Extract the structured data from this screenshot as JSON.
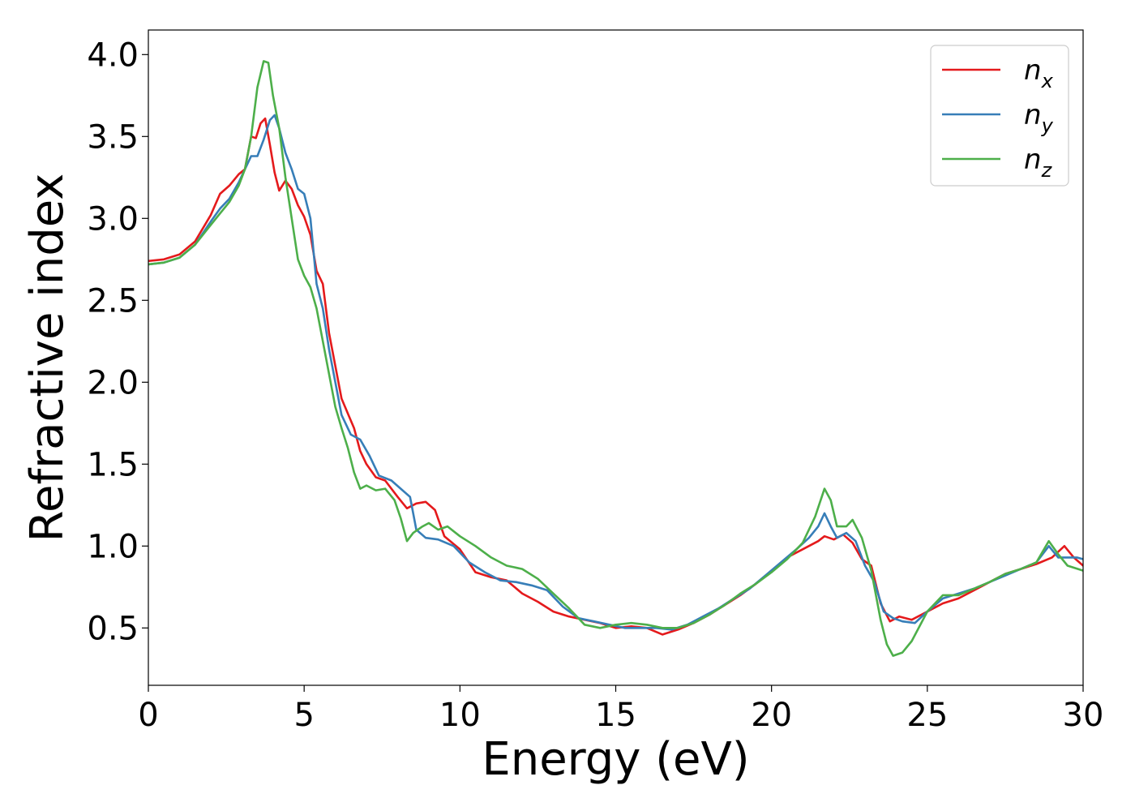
{
  "chart_data": {
    "type": "line",
    "title": "",
    "xlabel": "Energy (eV)",
    "ylabel": "Refractive index",
    "xlim": [
      0,
      30
    ],
    "ylim": [
      0.15,
      4.15
    ],
    "xticks": [
      "0",
      "5",
      "10",
      "15",
      "20",
      "25",
      "30"
    ],
    "yticks": [
      "0.5",
      "1.0",
      "1.5",
      "2.0",
      "2.5",
      "3.0",
      "3.5",
      "4.0"
    ],
    "grid": false,
    "legend_position": "top-right",
    "series": [
      {
        "name": "n",
        "subscript": "x",
        "color": "#e41a1c",
        "points": [
          [
            0,
            2.74
          ],
          [
            0.5,
            2.75
          ],
          [
            1,
            2.78
          ],
          [
            1.5,
            2.86
          ],
          [
            2,
            3.02
          ],
          [
            2.3,
            3.15
          ],
          [
            2.6,
            3.2
          ],
          [
            2.9,
            3.27
          ],
          [
            3.1,
            3.3
          ],
          [
            3.3,
            3.5
          ],
          [
            3.45,
            3.49
          ],
          [
            3.6,
            3.58
          ],
          [
            3.75,
            3.61
          ],
          [
            3.9,
            3.45
          ],
          [
            4.05,
            3.28
          ],
          [
            4.2,
            3.17
          ],
          [
            4.4,
            3.23
          ],
          [
            4.6,
            3.18
          ],
          [
            4.8,
            3.08
          ],
          [
            5.0,
            3.01
          ],
          [
            5.2,
            2.9
          ],
          [
            5.4,
            2.68
          ],
          [
            5.6,
            2.6
          ],
          [
            5.8,
            2.3
          ],
          [
            6.0,
            2.1
          ],
          [
            6.2,
            1.9
          ],
          [
            6.4,
            1.81
          ],
          [
            6.6,
            1.72
          ],
          [
            6.8,
            1.58
          ],
          [
            7.0,
            1.5
          ],
          [
            7.3,
            1.42
          ],
          [
            7.6,
            1.4
          ],
          [
            8.0,
            1.3
          ],
          [
            8.3,
            1.23
          ],
          [
            8.6,
            1.26
          ],
          [
            8.9,
            1.27
          ],
          [
            9.2,
            1.22
          ],
          [
            9.5,
            1.06
          ],
          [
            10.0,
            0.98
          ],
          [
            10.5,
            0.84
          ],
          [
            11.0,
            0.81
          ],
          [
            11.5,
            0.79
          ],
          [
            12.0,
            0.71
          ],
          [
            12.5,
            0.66
          ],
          [
            13.0,
            0.6
          ],
          [
            13.5,
            0.57
          ],
          [
            14.0,
            0.55
          ],
          [
            14.5,
            0.53
          ],
          [
            15.0,
            0.5
          ],
          [
            15.5,
            0.51
          ],
          [
            16.0,
            0.5
          ],
          [
            16.5,
            0.46
          ],
          [
            17.0,
            0.49
          ],
          [
            17.5,
            0.53
          ],
          [
            18.0,
            0.58
          ],
          [
            18.5,
            0.64
          ],
          [
            19.0,
            0.7
          ],
          [
            19.5,
            0.77
          ],
          [
            20.0,
            0.85
          ],
          [
            20.5,
            0.93
          ],
          [
            21.0,
            0.98
          ],
          [
            21.5,
            1.03
          ],
          [
            21.7,
            1.06
          ],
          [
            22.0,
            1.04
          ],
          [
            22.3,
            1.07
          ],
          [
            22.6,
            1.02
          ],
          [
            22.9,
            0.92
          ],
          [
            23.2,
            0.88
          ],
          [
            23.5,
            0.65
          ],
          [
            23.8,
            0.54
          ],
          [
            24.1,
            0.57
          ],
          [
            24.5,
            0.55
          ],
          [
            25.0,
            0.6
          ],
          [
            25.5,
            0.65
          ],
          [
            26.0,
            0.68
          ],
          [
            26.5,
            0.73
          ],
          [
            27.0,
            0.78
          ],
          [
            27.5,
            0.83
          ],
          [
            28.0,
            0.86
          ],
          [
            28.5,
            0.89
          ],
          [
            29.0,
            0.93
          ],
          [
            29.4,
            1.0
          ],
          [
            29.7,
            0.93
          ],
          [
            30.0,
            0.88
          ]
        ]
      },
      {
        "name": "n",
        "subscript": "y",
        "color": "#377eb8",
        "points": [
          [
            0,
            2.72
          ],
          [
            0.5,
            2.73
          ],
          [
            1,
            2.76
          ],
          [
            1.5,
            2.84
          ],
          [
            2,
            2.98
          ],
          [
            2.3,
            3.06
          ],
          [
            2.6,
            3.12
          ],
          [
            2.9,
            3.22
          ],
          [
            3.1,
            3.3
          ],
          [
            3.3,
            3.38
          ],
          [
            3.5,
            3.38
          ],
          [
            3.7,
            3.48
          ],
          [
            3.9,
            3.6
          ],
          [
            4.05,
            3.63
          ],
          [
            4.2,
            3.55
          ],
          [
            4.4,
            3.4
          ],
          [
            4.6,
            3.3
          ],
          [
            4.8,
            3.18
          ],
          [
            5.0,
            3.15
          ],
          [
            5.2,
            3.0
          ],
          [
            5.4,
            2.6
          ],
          [
            5.6,
            2.45
          ],
          [
            5.8,
            2.2
          ],
          [
            6.0,
            2.0
          ],
          [
            6.2,
            1.8
          ],
          [
            6.5,
            1.68
          ],
          [
            6.8,
            1.65
          ],
          [
            7.1,
            1.55
          ],
          [
            7.4,
            1.43
          ],
          [
            7.8,
            1.4
          ],
          [
            8.1,
            1.35
          ],
          [
            8.4,
            1.3
          ],
          [
            8.6,
            1.1
          ],
          [
            8.9,
            1.05
          ],
          [
            9.3,
            1.04
          ],
          [
            9.8,
            1.0
          ],
          [
            10.3,
            0.9
          ],
          [
            10.8,
            0.84
          ],
          [
            11.3,
            0.79
          ],
          [
            11.8,
            0.78
          ],
          [
            12.3,
            0.76
          ],
          [
            12.8,
            0.73
          ],
          [
            13.3,
            0.63
          ],
          [
            13.8,
            0.56
          ],
          [
            14.3,
            0.54
          ],
          [
            14.8,
            0.52
          ],
          [
            15.3,
            0.5
          ],
          [
            15.8,
            0.5
          ],
          [
            16.3,
            0.5
          ],
          [
            16.8,
            0.49
          ],
          [
            17.3,
            0.52
          ],
          [
            17.8,
            0.57
          ],
          [
            18.3,
            0.62
          ],
          [
            18.8,
            0.68
          ],
          [
            19.3,
            0.74
          ],
          [
            19.8,
            0.82
          ],
          [
            20.3,
            0.9
          ],
          [
            20.8,
            0.98
          ],
          [
            21.2,
            1.05
          ],
          [
            21.5,
            1.12
          ],
          [
            21.7,
            1.2
          ],
          [
            21.9,
            1.12
          ],
          [
            22.1,
            1.05
          ],
          [
            22.4,
            1.08
          ],
          [
            22.7,
            1.03
          ],
          [
            23.0,
            0.88
          ],
          [
            23.3,
            0.78
          ],
          [
            23.6,
            0.6
          ],
          [
            23.9,
            0.56
          ],
          [
            24.2,
            0.54
          ],
          [
            24.6,
            0.53
          ],
          [
            25.0,
            0.6
          ],
          [
            25.5,
            0.68
          ],
          [
            26.0,
            0.71
          ],
          [
            26.5,
            0.74
          ],
          [
            27.0,
            0.78
          ],
          [
            27.5,
            0.82
          ],
          [
            28.0,
            0.86
          ],
          [
            28.5,
            0.9
          ],
          [
            28.9,
            1.0
          ],
          [
            29.2,
            0.93
          ],
          [
            29.5,
            0.93
          ],
          [
            29.8,
            0.93
          ],
          [
            30.0,
            0.92
          ]
        ]
      },
      {
        "name": "n",
        "subscript": "z",
        "color": "#4daf4a",
        "points": [
          [
            0,
            2.72
          ],
          [
            0.5,
            2.73
          ],
          [
            1,
            2.76
          ],
          [
            1.5,
            2.84
          ],
          [
            2,
            2.96
          ],
          [
            2.3,
            3.03
          ],
          [
            2.6,
            3.1
          ],
          [
            2.9,
            3.2
          ],
          [
            3.1,
            3.3
          ],
          [
            3.3,
            3.5
          ],
          [
            3.5,
            3.8
          ],
          [
            3.7,
            3.96
          ],
          [
            3.85,
            3.95
          ],
          [
            4.0,
            3.75
          ],
          [
            4.2,
            3.55
          ],
          [
            4.4,
            3.25
          ],
          [
            4.6,
            3.0
          ],
          [
            4.8,
            2.75
          ],
          [
            5.0,
            2.65
          ],
          [
            5.2,
            2.58
          ],
          [
            5.4,
            2.45
          ],
          [
            5.6,
            2.25
          ],
          [
            5.8,
            2.05
          ],
          [
            6.0,
            1.85
          ],
          [
            6.2,
            1.72
          ],
          [
            6.4,
            1.6
          ],
          [
            6.6,
            1.45
          ],
          [
            6.8,
            1.35
          ],
          [
            7.0,
            1.37
          ],
          [
            7.3,
            1.34
          ],
          [
            7.6,
            1.35
          ],
          [
            7.9,
            1.28
          ],
          [
            8.1,
            1.17
          ],
          [
            8.3,
            1.03
          ],
          [
            8.5,
            1.08
          ],
          [
            8.8,
            1.12
          ],
          [
            9.0,
            1.14
          ],
          [
            9.3,
            1.1
          ],
          [
            9.6,
            1.12
          ],
          [
            10.0,
            1.06
          ],
          [
            10.5,
            1.0
          ],
          [
            11.0,
            0.93
          ],
          [
            11.5,
            0.88
          ],
          [
            12.0,
            0.86
          ],
          [
            12.5,
            0.8
          ],
          [
            13.0,
            0.71
          ],
          [
            13.5,
            0.62
          ],
          [
            14.0,
            0.52
          ],
          [
            14.5,
            0.5
          ],
          [
            15.0,
            0.52
          ],
          [
            15.5,
            0.53
          ],
          [
            16.0,
            0.52
          ],
          [
            16.5,
            0.5
          ],
          [
            17.0,
            0.5
          ],
          [
            17.5,
            0.53
          ],
          [
            18.0,
            0.58
          ],
          [
            18.5,
            0.64
          ],
          [
            19.0,
            0.71
          ],
          [
            19.5,
            0.77
          ],
          [
            20.0,
            0.84
          ],
          [
            20.5,
            0.92
          ],
          [
            21.0,
            1.02
          ],
          [
            21.4,
            1.18
          ],
          [
            21.7,
            1.35
          ],
          [
            21.9,
            1.28
          ],
          [
            22.1,
            1.12
          ],
          [
            22.4,
            1.12
          ],
          [
            22.6,
            1.16
          ],
          [
            22.9,
            1.05
          ],
          [
            23.2,
            0.85
          ],
          [
            23.5,
            0.55
          ],
          [
            23.7,
            0.4
          ],
          [
            23.9,
            0.33
          ],
          [
            24.2,
            0.35
          ],
          [
            24.5,
            0.42
          ],
          [
            25.0,
            0.6
          ],
          [
            25.5,
            0.7
          ],
          [
            26.0,
            0.7
          ],
          [
            26.5,
            0.74
          ],
          [
            27.0,
            0.78
          ],
          [
            27.5,
            0.83
          ],
          [
            28.0,
            0.86
          ],
          [
            28.5,
            0.9
          ],
          [
            28.9,
            1.03
          ],
          [
            29.2,
            0.95
          ],
          [
            29.5,
            0.88
          ],
          [
            30.0,
            0.85
          ]
        ]
      }
    ]
  }
}
